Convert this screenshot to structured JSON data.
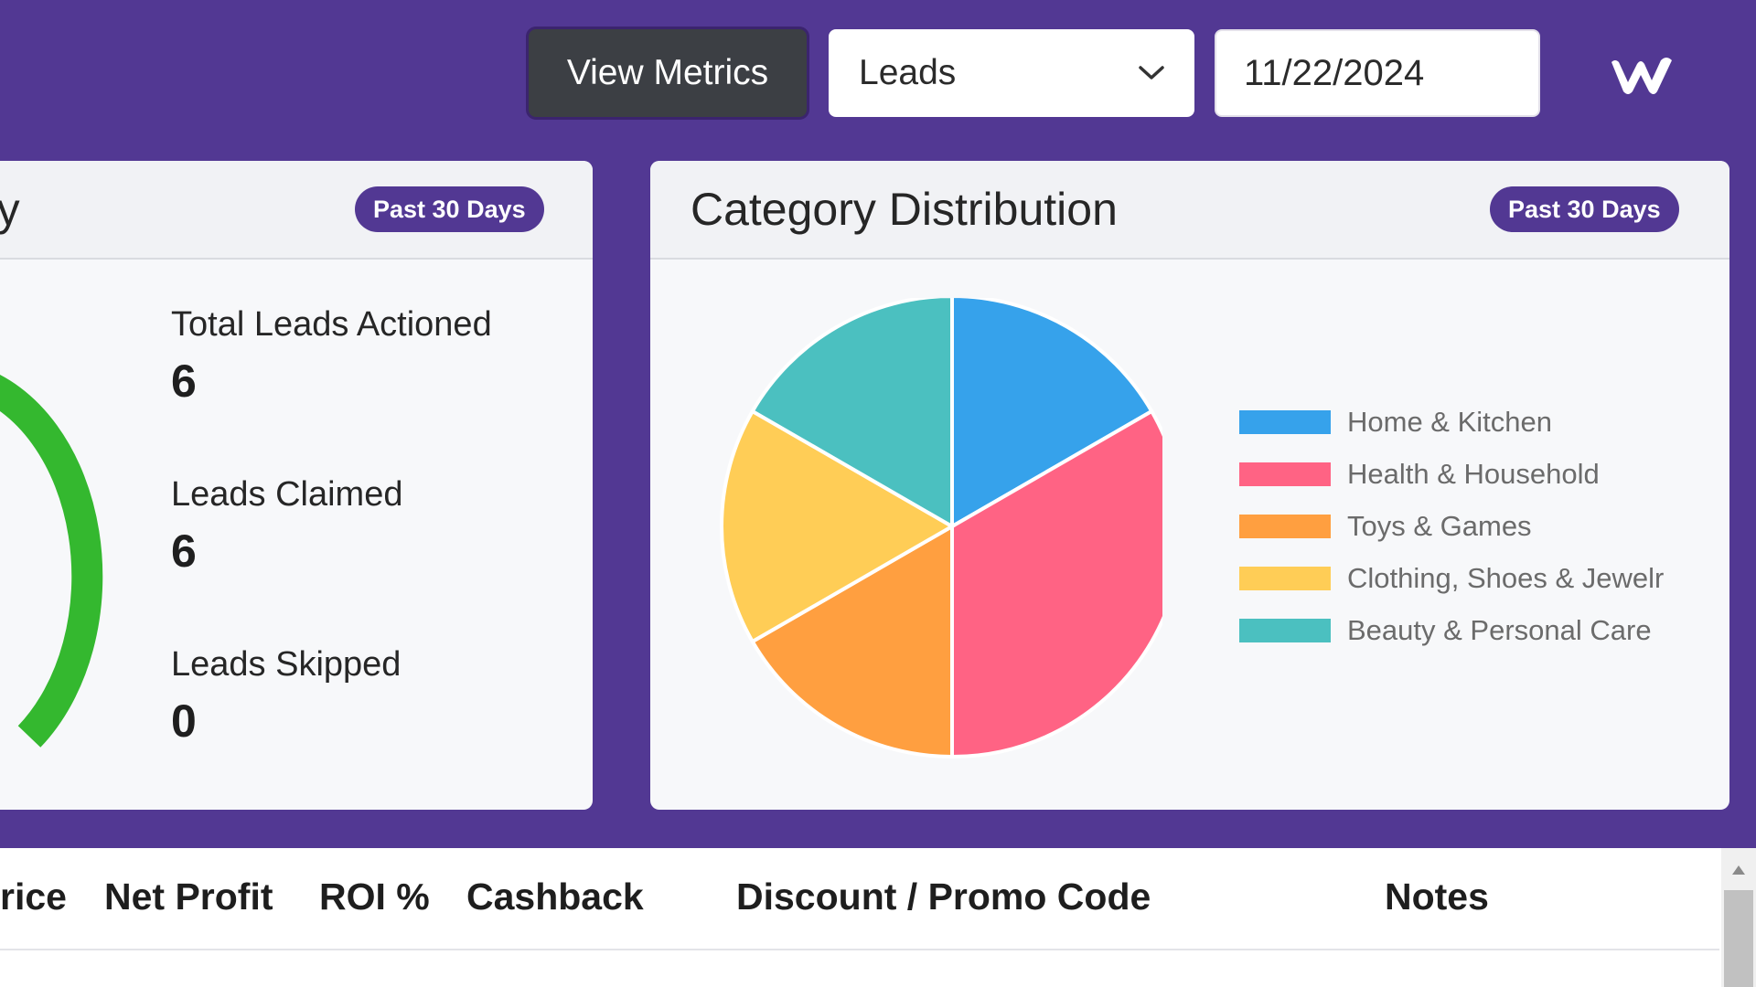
{
  "header": {
    "view_metrics_label": "View Metrics",
    "select_value": "Leads",
    "date_value": "11/22/2024"
  },
  "summary_card": {
    "title": "ry",
    "badge": "Past 30 Days",
    "stats": [
      {
        "label": "Total Leads Actioned",
        "value": "6"
      },
      {
        "label": "Leads Claimed",
        "value": "6"
      },
      {
        "label": "Leads Skipped",
        "value": "0"
      }
    ],
    "gauge_color": "#34b82f"
  },
  "distribution_card": {
    "title": "Category Distribution",
    "badge": "Past 30 Days"
  },
  "chart_data": {
    "type": "pie",
    "title": "Category Distribution",
    "categories": [
      "Home & Kitchen",
      "Health & Household",
      "Toys & Games",
      "Clothing, Shoes & Jewelr",
      "Beauty & Personal Care"
    ],
    "values": [
      1,
      2,
      1,
      1,
      1
    ],
    "colors": [
      "#36a2eb",
      "#ff6384",
      "#ff9f40",
      "#ffcd56",
      "#4bc0c0"
    ],
    "legend_position": "right"
  },
  "table": {
    "columns": [
      "rice",
      "Net Profit",
      "ROI %",
      "Cashback",
      "Discount / Promo Code",
      "Notes"
    ]
  },
  "colors": {
    "brand": "#523893",
    "button_dark": "#3c3f44"
  }
}
